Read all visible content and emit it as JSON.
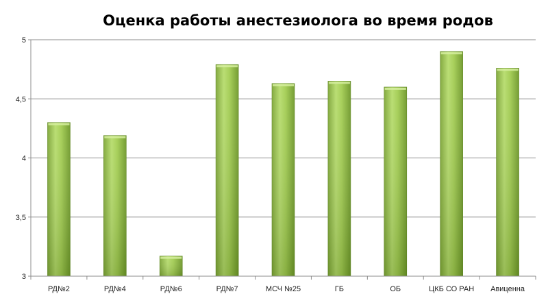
{
  "chart_data": {
    "type": "bar",
    "title": "Оценка работы анестезиолога во время родов",
    "xlabel": "",
    "ylabel": "",
    "categories": [
      "РД№2",
      "РД№4",
      "РД№6",
      "РД№7",
      "МСЧ №25",
      "ГБ",
      "ОБ",
      "ЦКБ СО РАН",
      "Авиценна"
    ],
    "values": [
      4.3,
      4.19,
      3.17,
      4.79,
      4.63,
      4.65,
      4.6,
      4.9,
      4.76
    ],
    "ylim": [
      3,
      5
    ],
    "yticks": [
      "3",
      "3,5",
      "4",
      "4,5",
      "5"
    ],
    "grid": true,
    "legend": "none",
    "colors": {
      "bar_light": "#b4d96a",
      "bar_mid": "#9bc749",
      "bar_dark": "#6f9a2c",
      "grid": "#8c8c8c"
    }
  }
}
